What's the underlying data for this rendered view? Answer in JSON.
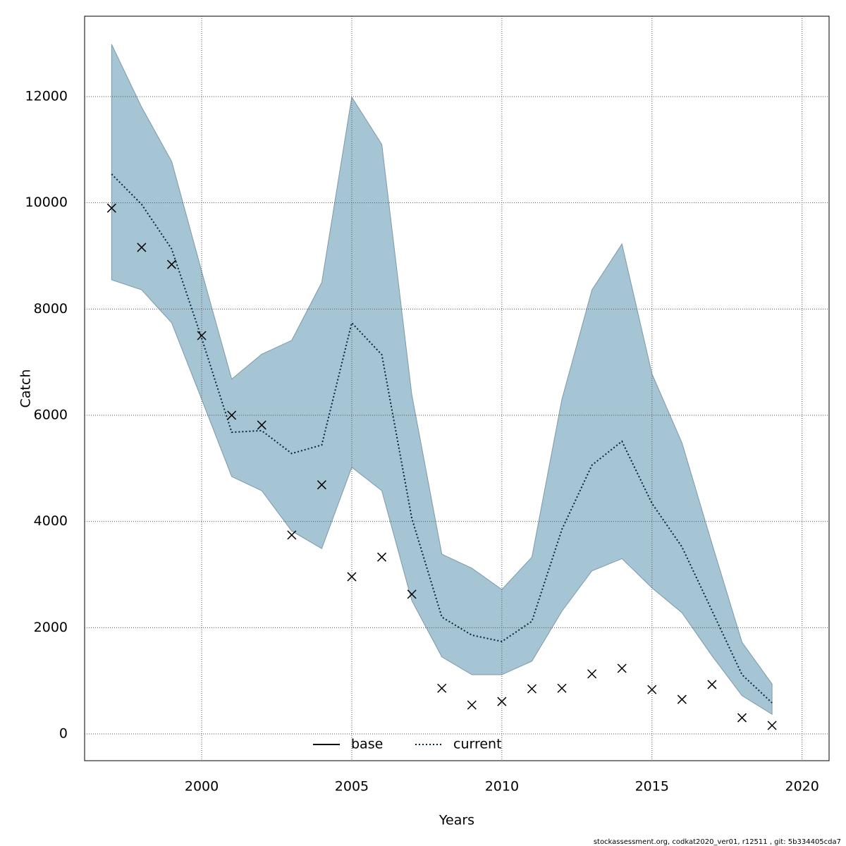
{
  "chart_data": {
    "type": "line",
    "xlabel": "Years",
    "ylabel": "Catch",
    "footnote": "stockassessment.org, codkat2020_ver01, r12511 , git: 5b334405cda7",
    "x": [
      1997,
      1998,
      1999,
      2000,
      2001,
      2002,
      2003,
      2004,
      2005,
      2006,
      2007,
      2008,
      2009,
      2010,
      2011,
      2012,
      2013,
      2014,
      2015,
      2016,
      2017,
      2018,
      2019
    ],
    "xlim": [
      1996.1,
      2020.9
    ],
    "xticks": [
      2000,
      2005,
      2010,
      2015,
      2020
    ],
    "ylim": [
      -504,
      13513
    ],
    "yticks": [
      0,
      2000,
      4000,
      6000,
      8000,
      10000,
      12000
    ],
    "grid": true,
    "band": {
      "color": "#a5c4d4",
      "upper": [
        12983,
        11800,
        10780,
        8710,
        6680,
        7150,
        7410,
        8500,
        11990,
        11100,
        6385,
        3385,
        3120,
        2720,
        3330,
        6300,
        8360,
        9225,
        6780,
        5480,
        3580,
        1725,
        940
      ],
      "lower": [
        8550,
        8360,
        7740,
        6300,
        4845,
        4580,
        3820,
        3490,
        5020,
        4580,
        2510,
        1450,
        1115,
        1115,
        1370,
        2310,
        3070,
        3300,
        2750,
        2280,
        1470,
        720,
        370
      ]
    },
    "series": [
      {
        "name": "current",
        "color": "#00263a",
        "dash": "dotted",
        "values": [
          10540,
          9970,
          9130,
          7450,
          5680,
          5710,
          5280,
          5440,
          7740,
          7140,
          4060,
          2200,
          1860,
          1740,
          2120,
          3850,
          5060,
          5510,
          4340,
          3520,
          2320,
          1115,
          585
        ]
      }
    ],
    "points": {
      "marker": "x",
      "color": "#000000",
      "values": [
        9900,
        9160,
        8840,
        7500,
        6000,
        5815,
        3745,
        4690,
        2960,
        3330,
        2630,
        860,
        545,
        610,
        850,
        860,
        1130,
        1235,
        835,
        650,
        930,
        305,
        160
      ]
    },
    "legend": {
      "position": "bottom",
      "entries": [
        {
          "name": "base",
          "color": "#000000",
          "dash": "solid"
        },
        {
          "name": "current",
          "color": "#00263a",
          "dash": "dotted"
        }
      ]
    }
  }
}
